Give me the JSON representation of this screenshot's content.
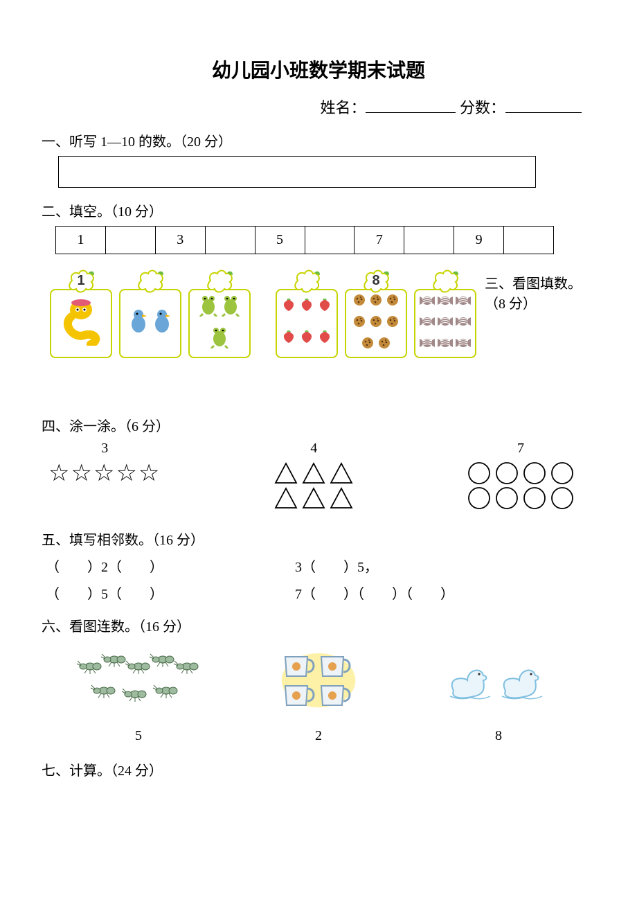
{
  "title": "幼儿园小班数学期末试题",
  "header": {
    "name_label": "姓名：",
    "score_label": "分数：",
    "name_underline_width": 130,
    "score_underline_width": 110
  },
  "q1": {
    "heading": "一、听写 1—10 的数。（20 分）"
  },
  "q2": {
    "heading": "二、填空。（10 分）",
    "cells": [
      "1",
      "",
      "3",
      "",
      "5",
      "",
      "7",
      "",
      "9",
      ""
    ]
  },
  "q3": {
    "heading": "三、看图填数。",
    "points": "（8 分）",
    "frame_border_color": "#c7d400",
    "bubble_color": "#c7d400",
    "leaf_color": "#6bbd3f",
    "cards": [
      {
        "label": "1",
        "type": "snake",
        "count": 1,
        "color": "#f5c400"
      },
      {
        "label": "",
        "type": "bird",
        "count": 2,
        "color": "#6aa7d8"
      },
      {
        "label": "",
        "type": "frog",
        "count": 3,
        "color": "#9cc43f"
      },
      {
        "label": "",
        "type": "berry",
        "count": 6,
        "color": "#e14b49"
      },
      {
        "label": "8",
        "type": "cookie",
        "count": 8,
        "color": "#c38a3a"
      },
      {
        "label": "",
        "type": "candy",
        "count": 9,
        "color": "#a38a8a"
      }
    ],
    "cluster_split": 3
  },
  "q4": {
    "heading": "四、涂一涂。（6 分）",
    "groups": [
      {
        "num": "3",
        "kind": "star",
        "count": 5
      },
      {
        "num": "4",
        "kind": "triangle",
        "count": 6,
        "cols": 3
      },
      {
        "num": "7",
        "kind": "circle",
        "count": 8,
        "cols": 4
      }
    ],
    "stroke_color": "#000000"
  },
  "q5": {
    "heading": "五、填写相邻数。（16 分）",
    "rows": [
      {
        "left": "（　　）2（　　）",
        "right": "3（　　）5，"
      },
      {
        "left": "（　　）5（　　）",
        "right": "7（　　）（　　）（　　）"
      }
    ]
  },
  "q6": {
    "heading": "六、看图连数。（16 分）",
    "items": [
      {
        "kind": "ant",
        "count": 8,
        "color": "#9fbb9f",
        "num": "5"
      },
      {
        "kind": "cup",
        "count": 4,
        "color": "#7fa1bd",
        "num": "2"
      },
      {
        "kind": "duck",
        "count": 2,
        "color": "#7fbfe0",
        "num": "8"
      }
    ]
  },
  "q7": {
    "heading": "七、计算。（24 分）"
  }
}
